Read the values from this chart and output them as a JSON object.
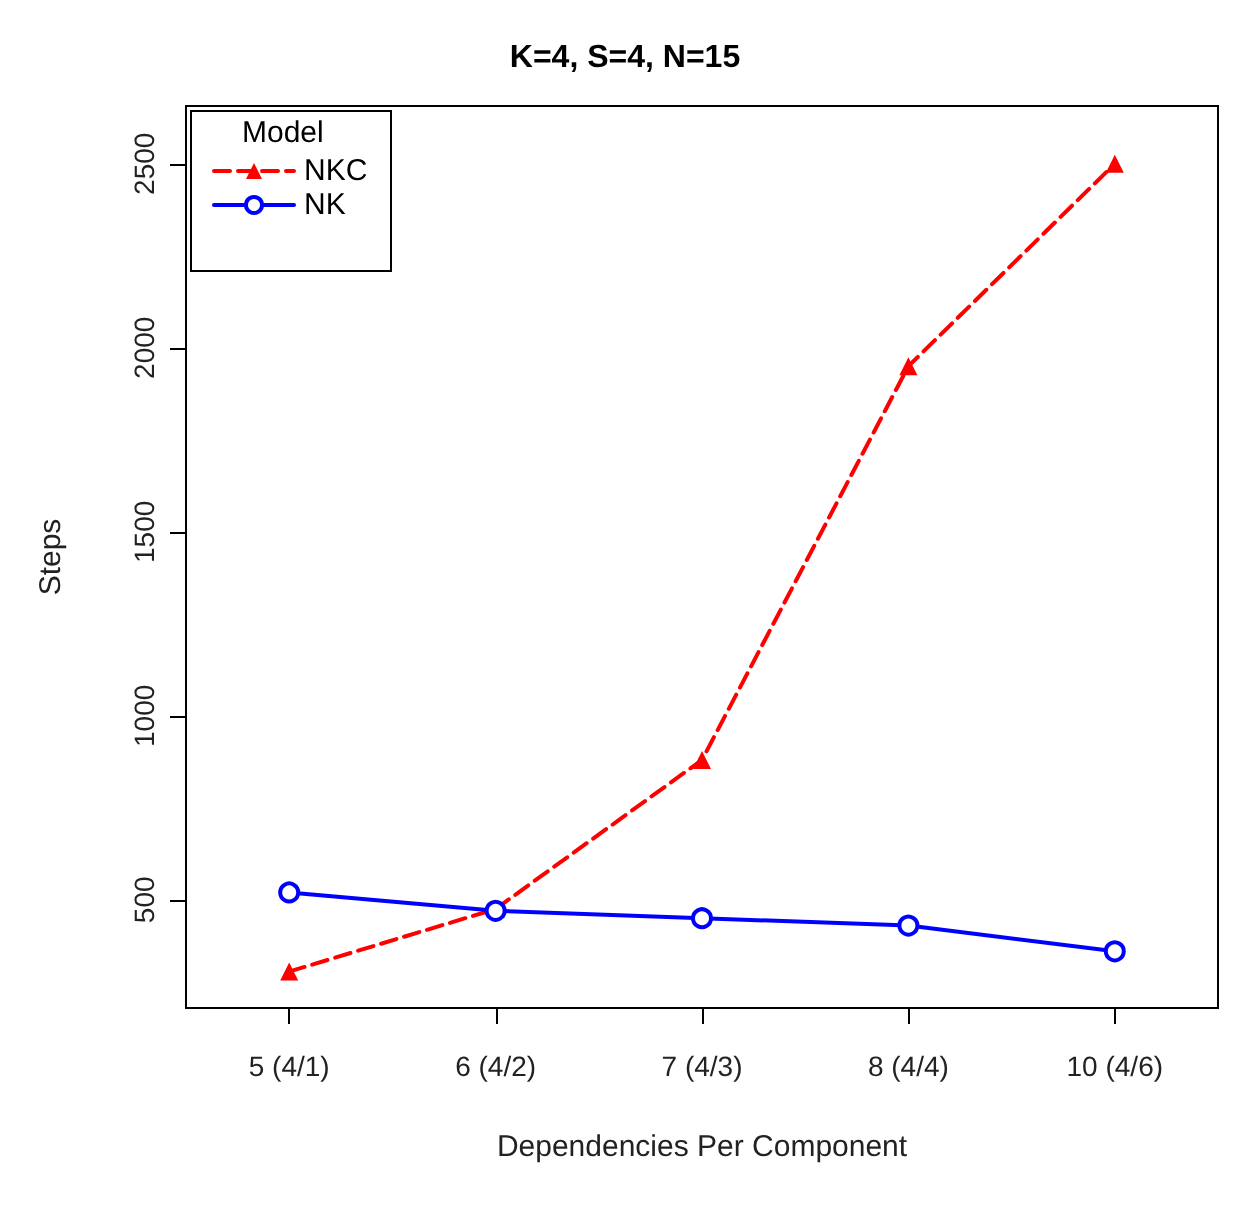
{
  "chart_data": {
    "type": "line",
    "title": "K=4, S=4, N=15",
    "xlabel": "Dependencies Per Component",
    "ylabel": "Steps",
    "legend_title": "Model",
    "legend": "top left",
    "categories": [
      "5 (4/1)",
      "6 (4/2)",
      "7 (4/3)",
      "8 (4/4)",
      "10 (4/6)"
    ],
    "series": [
      {
        "name": "NKC",
        "color": "#ff0000",
        "marker": "triangle",
        "line_style": "dashed",
        "values": [
          305,
          475,
          880,
          1950,
          2500
        ]
      },
      {
        "name": "NK",
        "color": "#0000ff",
        "marker": "circle",
        "line_style": "solid",
        "values": [
          520,
          470,
          450,
          430,
          360
        ]
      }
    ],
    "ylim": [
      206,
      2657
    ],
    "yticks": [
      500,
      1000,
      1500,
      2000,
      2500
    ],
    "grid": false
  }
}
